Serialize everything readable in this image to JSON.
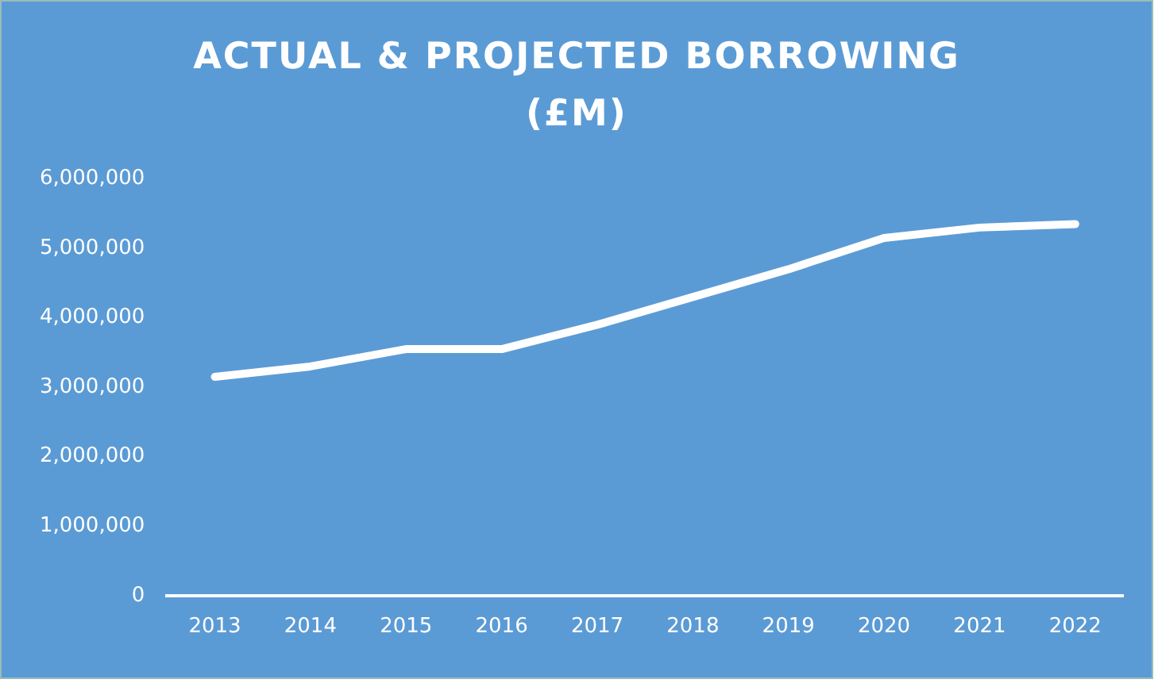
{
  "chart_data": {
    "type": "line",
    "title": "ACTUAL & PROJECTED BORROWING",
    "subtitle": "(£M)",
    "categories": [
      "2013",
      "2014",
      "2015",
      "2016",
      "2017",
      "2018",
      "2019",
      "2020",
      "2021",
      "2022"
    ],
    "series": [
      {
        "color": "#ffffff",
        "values": [
          3150000,
          3300000,
          3550000,
          3550000,
          3900000,
          4300000,
          4700000,
          5150000,
          5300000,
          5350000
        ]
      }
    ],
    "ylim": [
      0,
      6000000
    ],
    "yticks": [
      0,
      {
        "value": 1000000,
        "label": "1,000,000"
      },
      {
        "value": 2000000,
        "label": "2,000,000"
      },
      {
        "value": 3000000,
        "label": "3,000,000"
      },
      {
        "value": 4000000,
        "label": "4,000,000"
      },
      {
        "value": 5000000,
        "label": "5,000,000"
      },
      {
        "value": 6000000,
        "label": "6,000,000"
      }
    ],
    "grid": false,
    "legend": false,
    "marker": "none",
    "line_style": "solid"
  }
}
